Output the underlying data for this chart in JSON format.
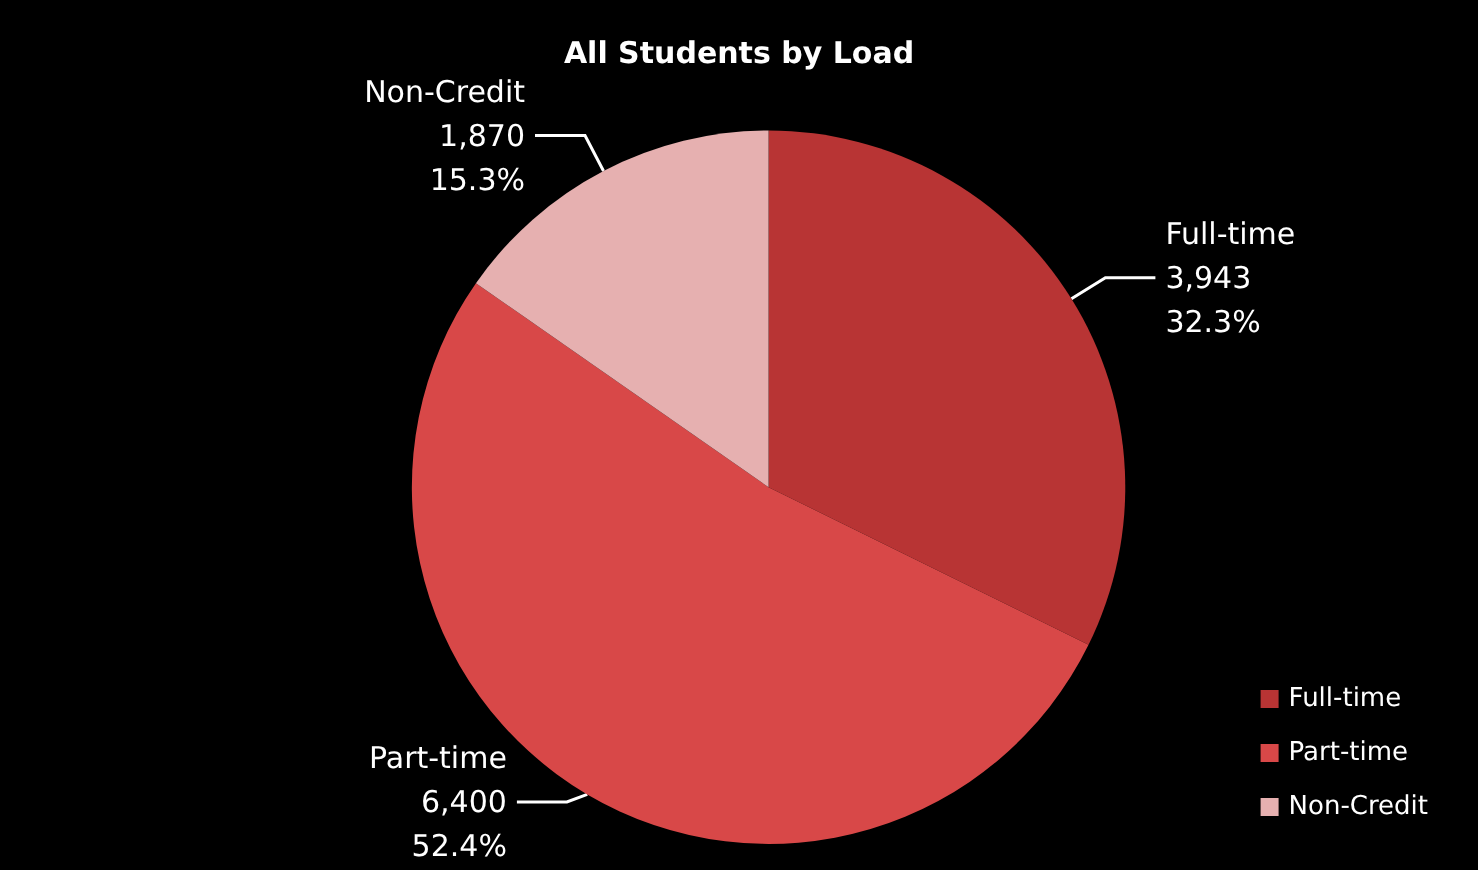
{
  "chart_data": {
    "type": "pie",
    "title": "All Students by Load",
    "categories": [
      "Full-time",
      "Part-time",
      "Non-Credit"
    ],
    "values": [
      3943,
      6400,
      1870
    ],
    "value_labels": [
      "3,943\n32.3%",
      "6,400\n52.4%",
      "1,870\n15.3%"
    ],
    "colors": [
      "#b83434",
      "#d84848",
      "#e6b0b0"
    ],
    "legend": "bottom right"
  }
}
